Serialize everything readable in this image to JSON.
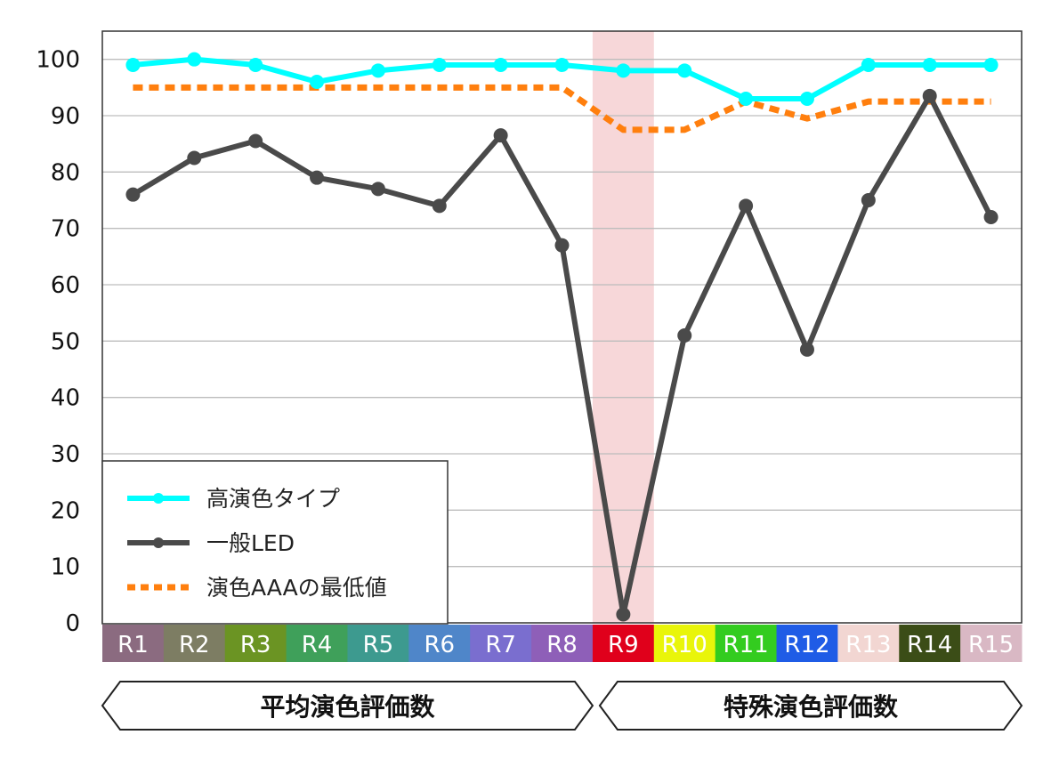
{
  "chart_data": {
    "type": "line",
    "categories": [
      "R1",
      "R2",
      "R3",
      "R4",
      "R5",
      "R6",
      "R7",
      "R8",
      "R9",
      "R10",
      "R11",
      "R12",
      "R13",
      "R14",
      "R15"
    ],
    "category_colors": [
      "#8b6b80",
      "#7d7d63",
      "#6b9423",
      "#3fa05a",
      "#3d9a8f",
      "#4f86c9",
      "#7a6ecf",
      "#8e5fb8",
      "#e0001b",
      "#e9f50a",
      "#33cc1f",
      "#1f5ce6",
      "#f2d6d2",
      "#3b4d17",
      "#d9b8c4"
    ],
    "category_label_colors": [
      "#ffffff",
      "#ffffff",
      "#ffffff",
      "#ffffff",
      "#ffffff",
      "#ffffff",
      "#ffffff",
      "#ffffff",
      "#ffffff",
      "#ffffff",
      "#ffffff",
      "#ffffff",
      "#ffffff",
      "#ffffff",
      "#ffffff"
    ],
    "highlight_category": "R9",
    "highlight_color": "#f7d7d9",
    "series": [
      {
        "name": "高演色タイプ",
        "color": "#00ffff",
        "style": "solid-markers",
        "values": [
          99,
          100,
          99,
          96,
          98,
          99,
          99,
          99,
          98,
          98,
          93,
          93,
          99,
          99,
          99
        ]
      },
      {
        "name": "一般LED",
        "color": "#4a4a4a",
        "style": "solid-markers",
        "values": [
          76,
          82.5,
          85.5,
          79,
          77,
          74,
          86.5,
          67,
          1.5,
          51,
          74,
          48.5,
          75,
          93.5,
          72
        ]
      },
      {
        "name": "演色AAAの最低値",
        "color": "#ff7f0e",
        "style": "dotted",
        "values": [
          95,
          95,
          95,
          95,
          95,
          95,
          95,
          95,
          87.5,
          87.5,
          92.5,
          89.5,
          92.5,
          92.5,
          92.5
        ]
      }
    ],
    "ylim": [
      0,
      105
    ],
    "yticks": [
      0,
      10,
      20,
      30,
      40,
      50,
      60,
      70,
      80,
      90,
      100
    ],
    "grid": true,
    "legend_position": "bottom-left",
    "groups": [
      {
        "label": "平均演色評価数",
        "from": "R1",
        "to": "R8"
      },
      {
        "label": "特殊演色評価数",
        "from": "R9",
        "to": "R15"
      }
    ]
  }
}
